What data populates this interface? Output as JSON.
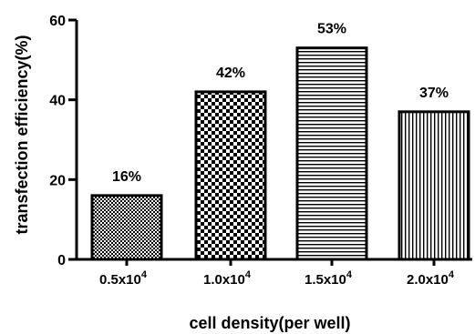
{
  "chart_data": {
    "type": "bar",
    "xlabel": "cell density(per well)",
    "ylabel": "transfection efficiency(%)",
    "ylim": [
      0,
      60
    ],
    "yticks": [
      0,
      20,
      40,
      60
    ],
    "grid": false,
    "categories": [
      {
        "base": "0.5x10",
        "exp": "4"
      },
      {
        "base": "1.0x10",
        "exp": "4"
      },
      {
        "base": "1.5x10",
        "exp": "4"
      },
      {
        "base": "2.0x10",
        "exp": "4"
      }
    ],
    "values": [
      16,
      42,
      53,
      37
    ],
    "data_labels": [
      "16%",
      "42%",
      "53%",
      "37%"
    ],
    "patterns": [
      "fine-checker",
      "coarse-checker",
      "horizontal-lines",
      "vertical-lines"
    ],
    "colors": {
      "bar_stroke": "#000000",
      "fill": "#ffffff",
      "ink": "#000000"
    }
  }
}
